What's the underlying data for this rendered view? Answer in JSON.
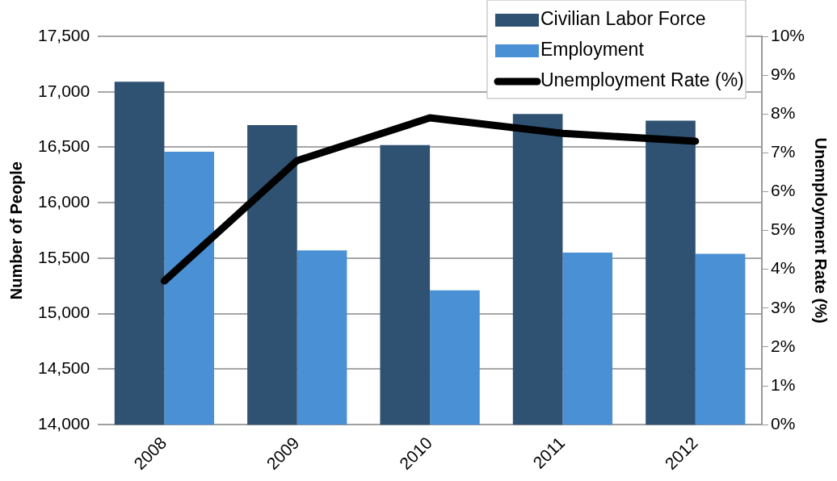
{
  "chart_data": {
    "type": "bar",
    "categories": [
      "2008",
      "2009",
      "2010",
      "2011",
      "2012"
    ],
    "ylabel": "Number of People",
    "y2label": "Unemployment Rate (%)",
    "ylim": [
      14000,
      17500
    ],
    "yticks": [
      {
        "value": 14000,
        "label": "14,000"
      },
      {
        "value": 14500,
        "label": "14,500"
      },
      {
        "value": 15000,
        "label": "15,000"
      },
      {
        "value": 15500,
        "label": "15,500"
      },
      {
        "value": 16000,
        "label": "16,000"
      },
      {
        "value": 16500,
        "label": "16,500"
      },
      {
        "value": 17000,
        "label": "17,000"
      },
      {
        "value": 17500,
        "label": "17,500"
      }
    ],
    "y2lim": [
      0,
      10
    ],
    "y2ticks": [
      {
        "value": 0,
        "label": "0%"
      },
      {
        "value": 1,
        "label": "1%"
      },
      {
        "value": 2,
        "label": "2%"
      },
      {
        "value": 3,
        "label": "3%"
      },
      {
        "value": 4,
        "label": "4%"
      },
      {
        "value": 5,
        "label": "5%"
      },
      {
        "value": 6,
        "label": "6%"
      },
      {
        "value": 7,
        "label": "7%"
      },
      {
        "value": 8,
        "label": "8%"
      },
      {
        "value": 9,
        "label": "9%"
      },
      {
        "value": 10,
        "label": "10%"
      }
    ],
    "series": [
      {
        "name": "Civilian Labor Force",
        "color": "#2f5273",
        "values": [
          17090,
          16700,
          16520,
          16800,
          16740
        ]
      },
      {
        "name": "Employment",
        "color": "#4a90d4",
        "values": [
          16460,
          15570,
          15210,
          15550,
          15540
        ]
      },
      {
        "name": "Unemployment Rate (%)",
        "type": "line",
        "axis": "y2",
        "color": "#000000",
        "values": [
          3.7,
          6.8,
          7.9,
          7.5,
          7.3
        ]
      }
    ],
    "grid": "y",
    "legend": "top right",
    "marker": "none",
    "line_style": "solid"
  }
}
